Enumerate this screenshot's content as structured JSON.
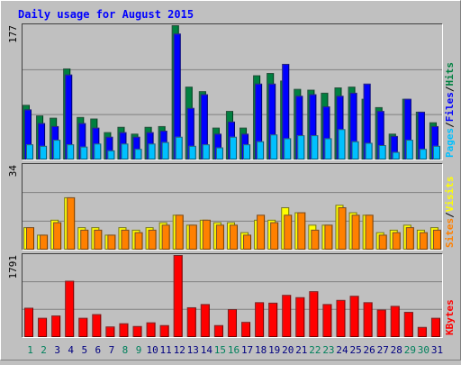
{
  "chart_data": [
    {
      "type": "bar",
      "title": "Daily usage for August 2015",
      "panel": "pages-files-hits",
      "ymax_label": "177",
      "ylim": [
        0,
        177
      ],
      "categories": [
        "1",
        "2",
        "3",
        "4",
        "5",
        "6",
        "7",
        "8",
        "9",
        "10",
        "11",
        "12",
        "13",
        "14",
        "15",
        "16",
        "17",
        "18",
        "19",
        "20",
        "21",
        "22",
        "23",
        "24",
        "25",
        "26",
        "27",
        "28",
        "29",
        "30",
        "31"
      ],
      "weekend_days": [
        "1",
        "2",
        "8",
        "9",
        "15",
        "16",
        "22",
        "23",
        "29",
        "30"
      ],
      "legend": [
        "Pages",
        "Files",
        "Hits"
      ],
      "series": [
        {
          "name": "Hits",
          "color": "#008040",
          "values": [
            72,
            58,
            55,
            120,
            56,
            54,
            36,
            43,
            34,
            43,
            44,
            177,
            96,
            90,
            42,
            64,
            42,
            111,
            114,
            104,
            93,
            92,
            88,
            95,
            96,
            80,
            69,
            34,
            80,
            63,
            49
          ]
        },
        {
          "name": "Files",
          "color": "#0000ff",
          "values": [
            66,
            48,
            44,
            112,
            48,
            42,
            30,
            36,
            30,
            36,
            38,
            166,
            68,
            86,
            34,
            50,
            34,
            100,
            100,
            126,
            84,
            86,
            70,
            84,
            88,
            100,
            64,
            31,
            80,
            63,
            44
          ]
        },
        {
          "name": "Pages",
          "color": "#00c0ff",
          "values": [
            20,
            18,
            26,
            20,
            17,
            21,
            12,
            21,
            14,
            21,
            23,
            30,
            18,
            20,
            16,
            30,
            20,
            24,
            33,
            28,
            32,
            32,
            28,
            40,
            24,
            22,
            19,
            10,
            26,
            14,
            18
          ]
        }
      ]
    },
    {
      "type": "bar",
      "panel": "visits-sites",
      "ymax_label": "34",
      "ylim": [
        0,
        34
      ],
      "categories": [
        "1",
        "2",
        "3",
        "4",
        "5",
        "6",
        "7",
        "8",
        "9",
        "10",
        "11",
        "12",
        "13",
        "14",
        "15",
        "16",
        "17",
        "18",
        "19",
        "20",
        "21",
        "22",
        "23",
        "24",
        "25",
        "26",
        "27",
        "28",
        "29",
        "30",
        "31"
      ],
      "legend": [
        "Sites",
        "Visits"
      ],
      "series": [
        {
          "name": "Visits",
          "color": "#ffff00",
          "values": [
            9,
            6,
            12,
            21,
            9,
            9,
            6,
            9,
            8,
            9,
            11,
            14,
            10,
            12,
            11,
            11,
            7,
            12,
            12,
            17,
            15,
            10,
            10,
            18,
            15,
            14,
            7,
            8,
            10,
            8,
            9
          ]
        },
        {
          "name": "Sites",
          "color": "#ff8000",
          "values": [
            9,
            6,
            11,
            21,
            8,
            8,
            6,
            8,
            7,
            8,
            10,
            14,
            10,
            12,
            10,
            10,
            6,
            14,
            11,
            14,
            15,
            8,
            10,
            17,
            14,
            14,
            6,
            7,
            9,
            7,
            8
          ]
        }
      ]
    },
    {
      "type": "bar",
      "panel": "kbytes",
      "ymax_label": "1791",
      "ylim": [
        0,
        1791
      ],
      "categories": [
        "1",
        "2",
        "3",
        "4",
        "5",
        "6",
        "7",
        "8",
        "9",
        "10",
        "11",
        "12",
        "13",
        "14",
        "15",
        "16",
        "17",
        "18",
        "19",
        "20",
        "21",
        "22",
        "23",
        "24",
        "25",
        "26",
        "27",
        "28",
        "29",
        "30",
        "31"
      ],
      "legend": [
        "KBytes"
      ],
      "series": [
        {
          "name": "KBytes",
          "color": "#ff0000",
          "values": [
            640,
            420,
            470,
            1230,
            420,
            500,
            230,
            300,
            240,
            320,
            260,
            1791,
            650,
            720,
            260,
            610,
            330,
            760,
            750,
            920,
            870,
            1000,
            720,
            810,
            900,
            760,
            600,
            680,
            550,
            220,
            420
          ]
        }
      ]
    }
  ]
}
